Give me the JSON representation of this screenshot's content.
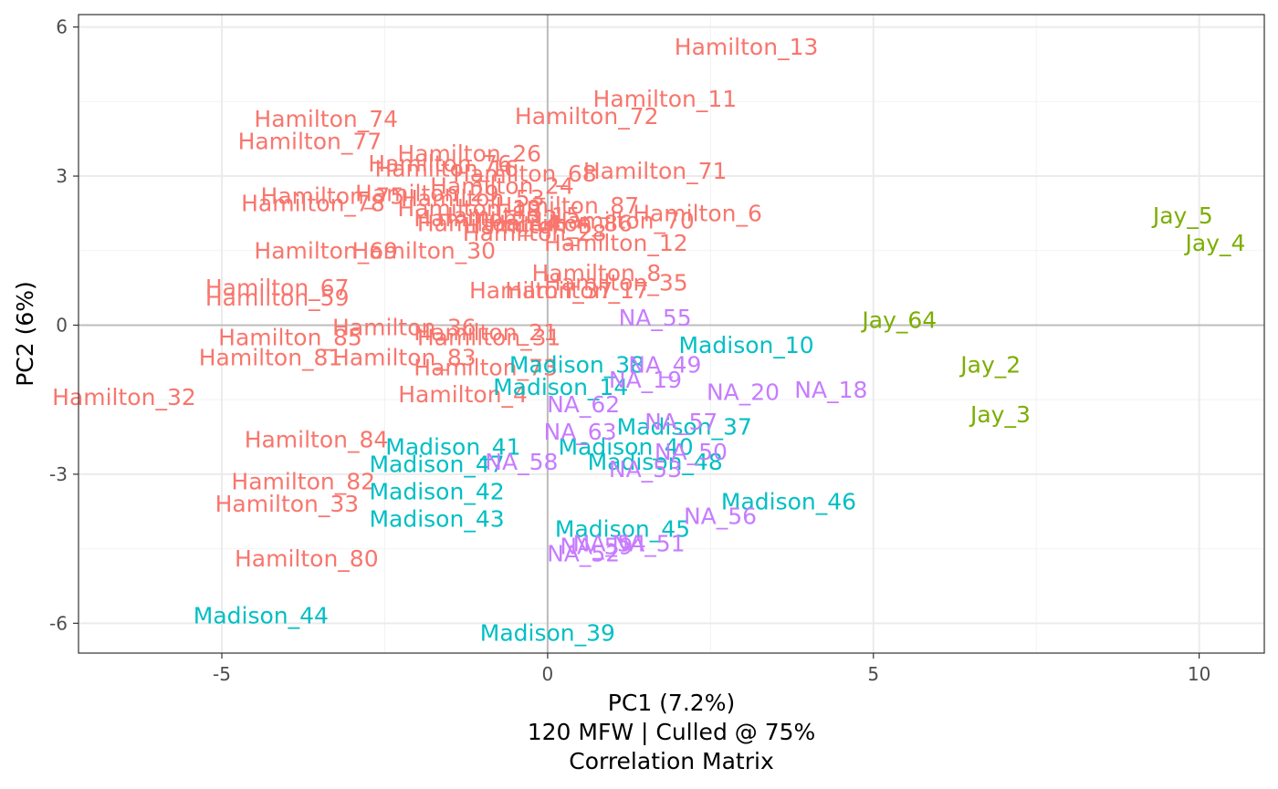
{
  "chart_data": {
    "type": "scatter",
    "x_label": "PC1 (7.2%)",
    "y_label": "PC2 (6%)",
    "subtitle_lines": [
      "120 MFW | Culled @ 75%",
      "Correlation Matrix"
    ],
    "xlim": [
      -7.2,
      11.0
    ],
    "ylim": [
      -6.6,
      6.25
    ],
    "x_ticks": [
      {
        "value": -5,
        "label": "-5"
      },
      {
        "value": 0,
        "label": "0"
      },
      {
        "value": 5,
        "label": "5"
      },
      {
        "value": 10,
        "label": "10"
      }
    ],
    "y_ticks": [
      {
        "value": -6,
        "label": "-6"
      },
      {
        "value": -3,
        "label": "-3"
      },
      {
        "value": 0,
        "label": "0"
      },
      {
        "value": 3,
        "label": "3"
      },
      {
        "value": 6,
        "label": "6"
      }
    ],
    "grid": true,
    "zero_lines": true,
    "legend": "none",
    "group_colors": {
      "Hamilton": "#F8766D",
      "Jay": "#7CAE00",
      "Madison": "#00BFC4",
      "NA": "#C77CFF"
    },
    "points": [
      {
        "label": "Hamilton_13",
        "group": "Hamilton",
        "x": 3.05,
        "y": 5.6
      },
      {
        "label": "Hamilton_11",
        "group": "Hamilton",
        "x": 1.8,
        "y": 4.55
      },
      {
        "label": "Hamilton_72",
        "group": "Hamilton",
        "x": 0.6,
        "y": 4.2
      },
      {
        "label": "Hamilton_74",
        "group": "Hamilton",
        "x": -3.4,
        "y": 4.15
      },
      {
        "label": "Hamilton_77",
        "group": "Hamilton",
        "x": -3.65,
        "y": 3.7
      },
      {
        "label": "Hamilton_26",
        "group": "Hamilton",
        "x": -1.2,
        "y": 3.45
      },
      {
        "label": "Hamilton_76",
        "group": "Hamilton",
        "x": -1.65,
        "y": 3.25
      },
      {
        "label": "Hamilton_16",
        "group": "Hamilton",
        "x": -1.55,
        "y": 3.15
      },
      {
        "label": "Hamilton_71",
        "group": "Hamilton",
        "x": 1.65,
        "y": 3.1
      },
      {
        "label": "Hamilton_68",
        "group": "Hamilton",
        "x": -0.35,
        "y": 3.05
      },
      {
        "label": "Hamilton_24",
        "group": "Hamilton",
        "x": -0.7,
        "y": 2.8
      },
      {
        "label": "Hamilton_29",
        "group": "Hamilton",
        "x": -1.85,
        "y": 2.65
      },
      {
        "label": "Hamilton_75",
        "group": "Hamilton",
        "x": -3.3,
        "y": 2.6
      },
      {
        "label": "Hamilton_53",
        "group": "Hamilton",
        "x": -1.15,
        "y": 2.55
      },
      {
        "label": "Hamilton_78",
        "group": "Hamilton",
        "x": -3.6,
        "y": 2.45
      },
      {
        "label": "Hamilton_87",
        "group": "Hamilton",
        "x": 0.3,
        "y": 2.4
      },
      {
        "label": "Hamilton_19",
        "group": "Hamilton",
        "x": -1.2,
        "y": 2.35
      },
      {
        "label": "Hamilton_6",
        "group": "Hamilton",
        "x": 2.3,
        "y": 2.25
      },
      {
        "label": "Hamilton_15",
        "group": "Hamilton",
        "x": -0.6,
        "y": 2.2
      },
      {
        "label": "Hamilton_22",
        "group": "Hamilton",
        "x": -0.95,
        "y": 2.15
      },
      {
        "label": "Hamilton_70",
        "group": "Hamilton",
        "x": 1.15,
        "y": 2.1
      },
      {
        "label": "Hamilton_86",
        "group": "Hamilton",
        "x": 0.2,
        "y": 2.05
      },
      {
        "label": "Hamilton_14",
        "group": "Hamilton",
        "x": -0.9,
        "y": 2.05
      },
      {
        "label": "Hamilton_5",
        "group": "Hamilton",
        "x": -0.3,
        "y": 2.0
      },
      {
        "label": "Hamilton_28",
        "group": "Hamilton",
        "x": -0.2,
        "y": 1.85
      },
      {
        "label": "Hamilton_12",
        "group": "Hamilton",
        "x": 1.05,
        "y": 1.65
      },
      {
        "label": "Hamilton_69",
        "group": "Hamilton",
        "x": -3.4,
        "y": 1.5
      },
      {
        "label": "Hamilton_30",
        "group": "Hamilton",
        "x": -1.9,
        "y": 1.5
      },
      {
        "label": "Hamilton_8",
        "group": "Hamilton",
        "x": 0.75,
        "y": 1.05
      },
      {
        "label": "Hamilton_35",
        "group": "Hamilton",
        "x": 1.05,
        "y": 0.85
      },
      {
        "label": "Hamilton_17",
        "group": "Hamilton",
        "x": 0.45,
        "y": 0.7
      },
      {
        "label": "Hamilton_37",
        "group": "Hamilton",
        "x": -0.1,
        "y": 0.7
      },
      {
        "label": "Hamilton_67",
        "group": "Hamilton",
        "x": -4.15,
        "y": 0.75
      },
      {
        "label": "Hamilton_59",
        "group": "Hamilton",
        "x": -4.15,
        "y": 0.55
      },
      {
        "label": "Hamilton_36",
        "group": "Hamilton",
        "x": -2.2,
        "y": -0.05
      },
      {
        "label": "Hamilton_21",
        "group": "Hamilton",
        "x": -0.95,
        "y": -0.15
      },
      {
        "label": "Hamilton_31",
        "group": "Hamilton",
        "x": -0.9,
        "y": -0.25
      },
      {
        "label": "Hamilton_85",
        "group": "Hamilton",
        "x": -3.95,
        "y": -0.25
      },
      {
        "label": "Hamilton_81",
        "group": "Hamilton",
        "x": -4.25,
        "y": -0.65
      },
      {
        "label": "Hamilton_83",
        "group": "Hamilton",
        "x": -2.2,
        "y": -0.65
      },
      {
        "label": "Hamilton_73",
        "group": "Hamilton",
        "x": -0.95,
        "y": -0.85
      },
      {
        "label": "Hamilton_32",
        "group": "Hamilton",
        "x": -6.5,
        "y": -1.45
      },
      {
        "label": "Hamilton_4",
        "group": "Hamilton",
        "x": -1.3,
        "y": -1.4
      },
      {
        "label": "Hamilton_84",
        "group": "Hamilton",
        "x": -3.55,
        "y": -2.3
      },
      {
        "label": "Hamilton_82",
        "group": "Hamilton",
        "x": -3.75,
        "y": -3.15
      },
      {
        "label": "Hamilton_33",
        "group": "Hamilton",
        "x": -4.0,
        "y": -3.6
      },
      {
        "label": "Hamilton_80",
        "group": "Hamilton",
        "x": -3.7,
        "y": -4.7
      },
      {
        "label": "Jay_5",
        "group": "Jay",
        "x": 9.75,
        "y": 2.2
      },
      {
        "label": "Jay_4",
        "group": "Jay",
        "x": 10.25,
        "y": 1.65
      },
      {
        "label": "Jay_64",
        "group": "Jay",
        "x": 5.4,
        "y": 0.1
      },
      {
        "label": "Jay_2",
        "group": "Jay",
        "x": 6.8,
        "y": -0.8
      },
      {
        "label": "Jay_3",
        "group": "Jay",
        "x": 6.95,
        "y": -1.8
      },
      {
        "label": "Madison_10",
        "group": "Madison",
        "x": 3.05,
        "y": -0.4
      },
      {
        "label": "Madison_38",
        "group": "Madison",
        "x": 0.45,
        "y": -0.8
      },
      {
        "label": "Madison_14",
        "group": "Madison",
        "x": 0.2,
        "y": -1.25
      },
      {
        "label": "Madison_37",
        "group": "Madison",
        "x": 2.1,
        "y": -2.05
      },
      {
        "label": "Madison_41",
        "group": "Madison",
        "x": -1.45,
        "y": -2.45
      },
      {
        "label": "Madison_40",
        "group": "Madison",
        "x": 1.2,
        "y": -2.45
      },
      {
        "label": "Madison_47",
        "group": "Madison",
        "x": -1.7,
        "y": -2.8
      },
      {
        "label": "Madison_48",
        "group": "Madison",
        "x": 1.65,
        "y": -2.75
      },
      {
        "label": "Madison_42",
        "group": "Madison",
        "x": -1.7,
        "y": -3.35
      },
      {
        "label": "Madison_43",
        "group": "Madison",
        "x": -1.7,
        "y": -3.9
      },
      {
        "label": "Madison_46",
        "group": "Madison",
        "x": 3.7,
        "y": -3.55
      },
      {
        "label": "Madison_45",
        "group": "Madison",
        "x": 1.15,
        "y": -4.1
      },
      {
        "label": "Madison_44",
        "group": "Madison",
        "x": -4.4,
        "y": -5.85
      },
      {
        "label": "Madison_39",
        "group": "Madison",
        "x": 0.0,
        "y": -6.2
      },
      {
        "label": "NA_55",
        "group": "NA",
        "x": 1.65,
        "y": 0.15
      },
      {
        "label": "NA_49",
        "group": "NA",
        "x": 1.8,
        "y": -0.8
      },
      {
        "label": "NA_19",
        "group": "NA",
        "x": 1.5,
        "y": -1.1
      },
      {
        "label": "NA_20",
        "group": "NA",
        "x": 3.0,
        "y": -1.35
      },
      {
        "label": "NA_18",
        "group": "NA",
        "x": 4.35,
        "y": -1.3
      },
      {
        "label": "NA_62",
        "group": "NA",
        "x": 0.55,
        "y": -1.6
      },
      {
        "label": "NA_57",
        "group": "NA",
        "x": 2.05,
        "y": -1.95
      },
      {
        "label": "NA_63",
        "group": "NA",
        "x": 0.5,
        "y": -2.15
      },
      {
        "label": "NA_50",
        "group": "NA",
        "x": 2.2,
        "y": -2.55
      },
      {
        "label": "NA_58",
        "group": "NA",
        "x": -0.4,
        "y": -2.75
      },
      {
        "label": "NA_53",
        "group": "NA",
        "x": 1.5,
        "y": -2.9
      },
      {
        "label": "NA_56",
        "group": "NA",
        "x": 2.65,
        "y": -3.85
      },
      {
        "label": "NA_51",
        "group": "NA",
        "x": 1.55,
        "y": -4.4
      },
      {
        "label": "NA_54",
        "group": "NA",
        "x": 0.95,
        "y": -4.4
      },
      {
        "label": "NA_59",
        "group": "NA",
        "x": 0.75,
        "y": -4.45
      },
      {
        "label": "NA_52",
        "group": "NA",
        "x": 0.55,
        "y": -4.6
      }
    ]
  }
}
